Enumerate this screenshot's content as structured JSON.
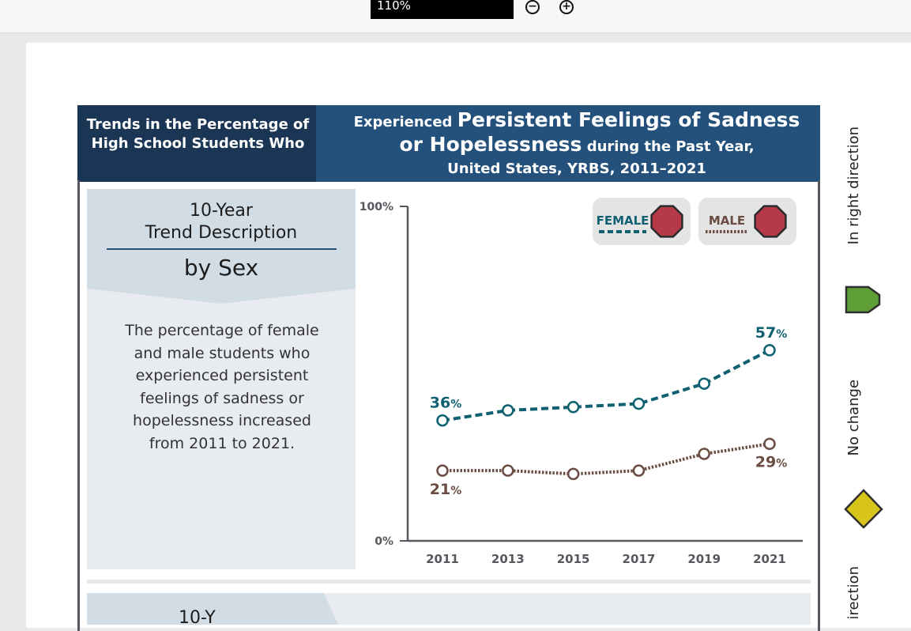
{
  "toolbar": {
    "zoom_value": "110%",
    "zoom_out_icon": "zoom-out-icon",
    "zoom_in_icon": "zoom-in-icon"
  },
  "header": {
    "left_text": "Trends in the Percentage of High School Students Who",
    "right_pre": "Experienced ",
    "right_big1": "Persistent Feelings of Sadness",
    "right_big2": "or Hopelessness",
    "right_post": " during the Past Year,",
    "right_line3": "United States, YRBS, 2011–2021"
  },
  "description_panel": {
    "title_line1": "10-Year",
    "title_line2": "Trend Description",
    "subtitle": "by Sex",
    "body": "The percentage of female and male students who experienced persistent feelings of sadness or hopelessness increased from 2011 to 2021."
  },
  "next_panel": {
    "title_fragment": "10-Y"
  },
  "legend": {
    "female_label": "FEMALE",
    "male_label": "MALE",
    "female_icon": "stop-sign-icon",
    "male_icon": "stop-sign-icon"
  },
  "side_legend": {
    "item1": "In right direction",
    "item1_icon": "green-arrow-shield-icon",
    "item2": "No change",
    "item2_icon": "yellow-diamond-icon",
    "item3": "irection"
  },
  "colors": {
    "female": "#0f6171",
    "male": "#6a4c42",
    "header_dark": "#1b3555",
    "header_blue": "#24517c",
    "stop_red": "#b33a46",
    "green": "#5e9e35",
    "yellow": "#d8c51a"
  },
  "chart_data": {
    "type": "line",
    "x": [
      "2011",
      "2013",
      "2015",
      "2017",
      "2019",
      "2021"
    ],
    "ylim": [
      0,
      100
    ],
    "y_tick_labels": [
      "0%",
      "100%"
    ],
    "series": [
      {
        "name": "FEMALE",
        "values": [
          36,
          39,
          40,
          41,
          47,
          57
        ],
        "value_labels": {
          "start": "36",
          "end": "57"
        },
        "style": "dashed"
      },
      {
        "name": "MALE",
        "values": [
          21,
          21,
          20,
          21,
          26,
          29
        ],
        "value_labels": {
          "start": "21",
          "end": "29"
        },
        "style": "dotted"
      }
    ],
    "percent_suffix": "%",
    "grid": false
  }
}
